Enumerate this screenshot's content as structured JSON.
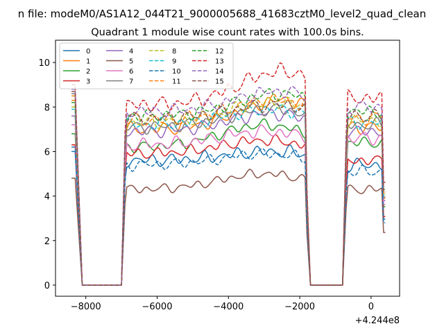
{
  "chart_data": {
    "type": "line",
    "suptitle": "n file: modeM0/AS1A12_044T21_9000005688_41683cztM0_level2_quad_clean",
    "title": "Quadrant 1 module wise count rates with 100.0s bins.",
    "xlabel": "",
    "ylabel": "",
    "x_offset_label": "+4.244e8",
    "xlim": [
      -8850,
      800
    ],
    "ylim": [
      -0.5,
      11
    ],
    "x_ticks": [
      -8000,
      -6000,
      -4000,
      -2000,
      0
    ],
    "x_tick_labels": [
      "−8000",
      "−6000",
      "−4000",
      "−2000",
      "0"
    ],
    "y_ticks": [
      0,
      2,
      4,
      6,
      8,
      10
    ],
    "y_tick_labels": [
      "0",
      "2",
      "4",
      "6",
      "8",
      "10"
    ],
    "grid": false,
    "legend_placement": "top-left",
    "legend_columns": 4,
    "x_segments": [
      {
        "start": -8400,
        "end": -6900,
        "step": 100
      },
      {
        "start": -6900,
        "end": -1800,
        "step": 50
      },
      {
        "start": -1800,
        "end": -700,
        "step": 100
      },
      {
        "start": -700,
        "end": 400,
        "step": 50
      }
    ],
    "series": [
      {
        "name": "0",
        "color": "#1f77b4",
        "dash": "solid",
        "pre": 6.0,
        "left_level": 5.6,
        "peak_level": 6.0,
        "peak_center": -2800,
        "right_level": 5.4,
        "noise": 0.35
      },
      {
        "name": "1",
        "color": "#ff7f0e",
        "dash": "solid",
        "pre": 8.5,
        "left_level": 7.0,
        "peak_level": 8.3,
        "peak_center": -2500,
        "right_level": 7.1,
        "noise": 0.35
      },
      {
        "name": "2",
        "color": "#2ca02c",
        "dash": "solid",
        "pre": 6.8,
        "left_level": 6.2,
        "peak_level": 7.2,
        "peak_center": -3000,
        "right_level": 6.4,
        "noise": 0.3
      },
      {
        "name": "3",
        "color": "#d62728",
        "dash": "solid",
        "pre": 6.3,
        "left_level": 5.9,
        "peak_level": 6.5,
        "peak_center": -3000,
        "right_level": 5.6,
        "noise": 0.3
      },
      {
        "name": "4",
        "color": "#9467bd",
        "dash": "solid",
        "pre": 7.6,
        "left_level": 6.9,
        "peak_level": 7.7,
        "peak_center": -2800,
        "right_level": 6.9,
        "noise": 0.35
      },
      {
        "name": "5",
        "color": "#8c564b",
        "dash": "solid",
        "pre": 4.8,
        "left_level": 4.3,
        "peak_level": 5.0,
        "peak_center": -3000,
        "right_level": 4.3,
        "noise": 0.25
      },
      {
        "name": "6",
        "color": "#e377c2",
        "dash": "solid",
        "pre": 7.2,
        "left_level": 6.3,
        "peak_level": 6.9,
        "peak_center": -3000,
        "right_level": 6.6,
        "noise": 0.35
      },
      {
        "name": "7",
        "color": "#7f7f7f",
        "dash": "solid",
        "pre": 8.6,
        "left_level": 7.1,
        "peak_level": 7.9,
        "peak_center": -2800,
        "right_level": 7.2,
        "noise": 0.35
      },
      {
        "name": "8",
        "color": "#bcbd22",
        "dash": "dashed",
        "pre": 8.0,
        "left_level": 7.3,
        "peak_level": 8.2,
        "peak_center": -2700,
        "right_level": 7.4,
        "noise": 0.35
      },
      {
        "name": "9",
        "color": "#17becf",
        "dash": "dashed",
        "pre": 7.9,
        "left_level": 7.2,
        "peak_level": 7.9,
        "peak_center": -2800,
        "right_level": 7.3,
        "noise": 0.35
      },
      {
        "name": "10",
        "color": "#1f77b4",
        "dash": "dashed",
        "pre": 6.2,
        "left_level": 5.4,
        "peak_level": 5.9,
        "peak_center": -3000,
        "right_level": 5.1,
        "noise": 0.3
      },
      {
        "name": "11",
        "color": "#ff7f0e",
        "dash": "dashed",
        "pre": 8.3,
        "left_level": 7.4,
        "peak_level": 8.3,
        "peak_center": -2700,
        "right_level": 7.5,
        "noise": 0.35
      },
      {
        "name": "12",
        "color": "#2ca02c",
        "dash": "dashed",
        "pre": 8.2,
        "left_level": 7.6,
        "peak_level": 8.6,
        "peak_center": -2600,
        "right_level": 7.8,
        "noise": 0.35
      },
      {
        "name": "13",
        "color": "#d62728",
        "dash": "dashed",
        "pre": 9.0,
        "left_level": 8.1,
        "peak_level": 9.6,
        "peak_center": -2500,
        "right_level": 8.4,
        "noise": 0.4
      },
      {
        "name": "14",
        "color": "#9467bd",
        "dash": "dashed",
        "pre": 8.8,
        "left_level": 7.8,
        "peak_level": 8.7,
        "peak_center": -2600,
        "right_level": 8.0,
        "noise": 0.35
      },
      {
        "name": "15",
        "color": "#8c564b",
        "dash": "dashed",
        "pre": 8.7,
        "left_level": 7.5,
        "peak_level": 8.1,
        "peak_center": -2700,
        "right_level": 7.6,
        "noise": 0.35
      }
    ]
  }
}
